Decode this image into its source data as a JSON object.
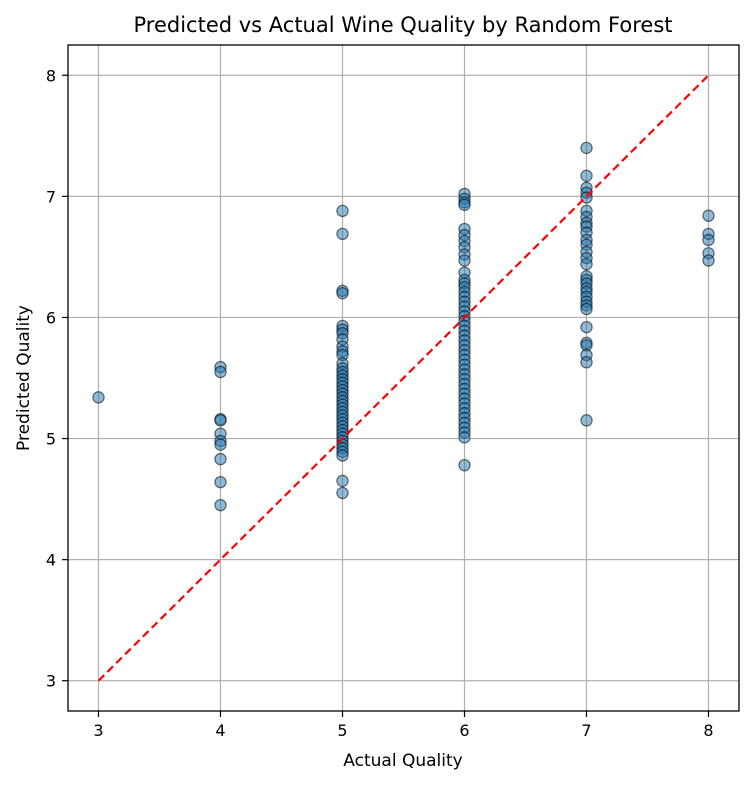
{
  "chart_data": {
    "type": "scatter",
    "title": "Predicted vs Actual Wine Quality by Random Forest",
    "xlabel": "Actual Quality",
    "ylabel": "Predicted Quality",
    "xlim": [
      2.75,
      8.25
    ],
    "ylim": [
      2.75,
      8.25
    ],
    "xticks": [
      3,
      4,
      5,
      6,
      7,
      8
    ],
    "yticks": [
      3,
      4,
      5,
      6,
      7,
      8
    ],
    "grid": true,
    "point_color": "#1f77b4",
    "point_alpha": 0.5,
    "point_edge_color": "#000000",
    "reference_line": {
      "x": [
        3,
        8
      ],
      "y": [
        3,
        8
      ],
      "color": "#ff0000",
      "style": "dashed"
    },
    "points": [
      {
        "x": 3,
        "y": 5.34
      },
      {
        "x": 4,
        "y": 5.59
      },
      {
        "x": 4,
        "y": 5.55
      },
      {
        "x": 4,
        "y": 5.16
      },
      {
        "x": 4,
        "y": 5.15
      },
      {
        "x": 4,
        "y": 5.04
      },
      {
        "x": 4,
        "y": 4.98
      },
      {
        "x": 4,
        "y": 4.95
      },
      {
        "x": 4,
        "y": 4.83
      },
      {
        "x": 4,
        "y": 4.64
      },
      {
        "x": 4,
        "y": 4.45
      },
      {
        "x": 5,
        "y": 6.88
      },
      {
        "x": 5,
        "y": 6.69
      },
      {
        "x": 5,
        "y": 6.22
      },
      {
        "x": 5,
        "y": 6.2
      },
      {
        "x": 5,
        "y": 5.93
      },
      {
        "x": 5,
        "y": 5.9
      },
      {
        "x": 5,
        "y": 5.87
      },
      {
        "x": 5,
        "y": 5.82
      },
      {
        "x": 5,
        "y": 5.76
      },
      {
        "x": 5,
        "y": 5.72
      },
      {
        "x": 5,
        "y": 5.69
      },
      {
        "x": 5,
        "y": 5.62
      },
      {
        "x": 5,
        "y": 5.58
      },
      {
        "x": 5,
        "y": 5.55
      },
      {
        "x": 5,
        "y": 5.52
      },
      {
        "x": 5,
        "y": 5.49
      },
      {
        "x": 5,
        "y": 5.46
      },
      {
        "x": 5,
        "y": 5.43
      },
      {
        "x": 5,
        "y": 5.4
      },
      {
        "x": 5,
        "y": 5.37
      },
      {
        "x": 5,
        "y": 5.34
      },
      {
        "x": 5,
        "y": 5.31
      },
      {
        "x": 5,
        "y": 5.28
      },
      {
        "x": 5,
        "y": 5.25
      },
      {
        "x": 5,
        "y": 5.22
      },
      {
        "x": 5,
        "y": 5.19
      },
      {
        "x": 5,
        "y": 5.16
      },
      {
        "x": 5,
        "y": 5.13
      },
      {
        "x": 5,
        "y": 5.1
      },
      {
        "x": 5,
        "y": 5.07
      },
      {
        "x": 5,
        "y": 5.04
      },
      {
        "x": 5,
        "y": 5.01
      },
      {
        "x": 5,
        "y": 4.98
      },
      {
        "x": 5,
        "y": 4.95
      },
      {
        "x": 5,
        "y": 4.92
      },
      {
        "x": 5,
        "y": 4.89
      },
      {
        "x": 5,
        "y": 4.86
      },
      {
        "x": 5,
        "y": 4.65
      },
      {
        "x": 5,
        "y": 4.55
      },
      {
        "x": 6,
        "y": 7.02
      },
      {
        "x": 6,
        "y": 6.98
      },
      {
        "x": 6,
        "y": 6.95
      },
      {
        "x": 6,
        "y": 6.93
      },
      {
        "x": 6,
        "y": 6.73
      },
      {
        "x": 6,
        "y": 6.68
      },
      {
        "x": 6,
        "y": 6.63
      },
      {
        "x": 6,
        "y": 6.58
      },
      {
        "x": 6,
        "y": 6.52
      },
      {
        "x": 6,
        "y": 6.47
      },
      {
        "x": 6,
        "y": 6.37
      },
      {
        "x": 6,
        "y": 6.31
      },
      {
        "x": 6,
        "y": 6.28
      },
      {
        "x": 6,
        "y": 6.25
      },
      {
        "x": 6,
        "y": 6.21
      },
      {
        "x": 6,
        "y": 6.17
      },
      {
        "x": 6,
        "y": 6.13
      },
      {
        "x": 6,
        "y": 6.09
      },
      {
        "x": 6,
        "y": 6.05
      },
      {
        "x": 6,
        "y": 6.01
      },
      {
        "x": 6,
        "y": 5.97
      },
      {
        "x": 6,
        "y": 5.93
      },
      {
        "x": 6,
        "y": 5.89
      },
      {
        "x": 6,
        "y": 5.85
      },
      {
        "x": 6,
        "y": 5.81
      },
      {
        "x": 6,
        "y": 5.77
      },
      {
        "x": 6,
        "y": 5.73
      },
      {
        "x": 6,
        "y": 5.69
      },
      {
        "x": 6,
        "y": 5.65
      },
      {
        "x": 6,
        "y": 5.61
      },
      {
        "x": 6,
        "y": 5.57
      },
      {
        "x": 6,
        "y": 5.53
      },
      {
        "x": 6,
        "y": 5.49
      },
      {
        "x": 6,
        "y": 5.45
      },
      {
        "x": 6,
        "y": 5.41
      },
      {
        "x": 6,
        "y": 5.37
      },
      {
        "x": 6,
        "y": 5.33
      },
      {
        "x": 6,
        "y": 5.29
      },
      {
        "x": 6,
        "y": 5.25
      },
      {
        "x": 6,
        "y": 5.21
      },
      {
        "x": 6,
        "y": 5.17
      },
      {
        "x": 6,
        "y": 5.13
      },
      {
        "x": 6,
        "y": 5.09
      },
      {
        "x": 6,
        "y": 5.05
      },
      {
        "x": 6,
        "y": 5.01
      },
      {
        "x": 6,
        "y": 4.78
      },
      {
        "x": 7,
        "y": 7.4
      },
      {
        "x": 7,
        "y": 7.17
      },
      {
        "x": 7,
        "y": 7.07
      },
      {
        "x": 7,
        "y": 7.03
      },
      {
        "x": 7,
        "y": 6.99
      },
      {
        "x": 7,
        "y": 6.88
      },
      {
        "x": 7,
        "y": 6.83
      },
      {
        "x": 7,
        "y": 6.78
      },
      {
        "x": 7,
        "y": 6.75
      },
      {
        "x": 7,
        "y": 6.7
      },
      {
        "x": 7,
        "y": 6.64
      },
      {
        "x": 7,
        "y": 6.6
      },
      {
        "x": 7,
        "y": 6.54
      },
      {
        "x": 7,
        "y": 6.49
      },
      {
        "x": 7,
        "y": 6.44
      },
      {
        "x": 7,
        "y": 6.34
      },
      {
        "x": 7,
        "y": 6.31
      },
      {
        "x": 7,
        "y": 6.28
      },
      {
        "x": 7,
        "y": 6.24
      },
      {
        "x": 7,
        "y": 6.21
      },
      {
        "x": 7,
        "y": 6.17
      },
      {
        "x": 7,
        "y": 6.13
      },
      {
        "x": 7,
        "y": 6.1
      },
      {
        "x": 7,
        "y": 6.07
      },
      {
        "x": 7,
        "y": 5.92
      },
      {
        "x": 7,
        "y": 5.79
      },
      {
        "x": 7,
        "y": 5.77
      },
      {
        "x": 7,
        "y": 5.69
      },
      {
        "x": 7,
        "y": 5.63
      },
      {
        "x": 7,
        "y": 5.15
      },
      {
        "x": 8,
        "y": 6.84
      },
      {
        "x": 8,
        "y": 6.69
      },
      {
        "x": 8,
        "y": 6.64
      },
      {
        "x": 8,
        "y": 6.53
      },
      {
        "x": 8,
        "y": 6.47
      }
    ]
  }
}
